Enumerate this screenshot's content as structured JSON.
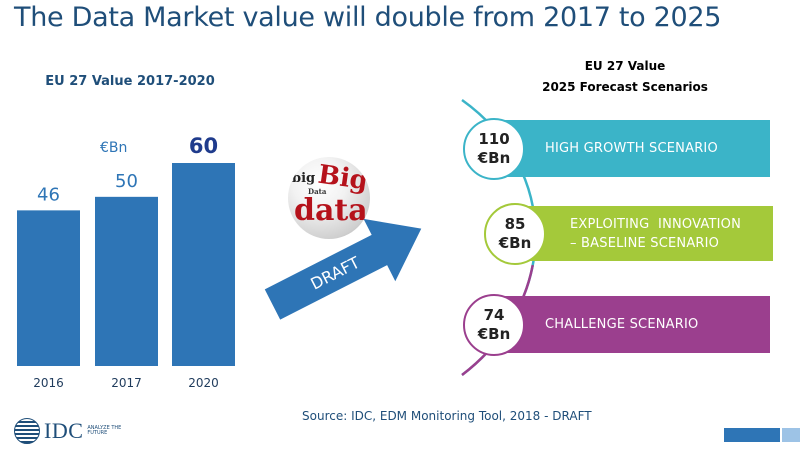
{
  "title": "The Data Market value will double from 2017 to 2025",
  "left_chart": {
    "heading": "EU 27 Value 2017-2020",
    "unit": "€Bn"
  },
  "right_panel": {
    "heading_line1": "EU 27 Value",
    "heading_line2": "2025 Forecast Scenarios",
    "scenarios": [
      {
        "value_line1": "110",
        "value_line2": "€Bn",
        "label_line1": "HIGH GROWTH SCENARIO",
        "label_line2": "",
        "color": "#3bb4c8"
      },
      {
        "value_line1": "85",
        "value_line2": "€Bn",
        "label_line1": "EXPLOITING  INNOVATION",
        "label_line2": "– BASELINE SCENARIO",
        "color": "#a4c93a"
      },
      {
        "value_line1": "74",
        "value_line2": "€Bn",
        "label_line1": "CHALLENGE SCENARIO",
        "label_line2": "",
        "color": "#9b3f8e"
      }
    ]
  },
  "arrow_label": "DRAFT",
  "ball_words": [
    "big",
    "data",
    "Big",
    "Data"
  ],
  "source": "Source: IDC, EDM Monitoring Tool, 2018 - DRAFT",
  "logo": {
    "text": "IDC",
    "tagline": "ANALYZE THE FUTURE"
  },
  "chart_data": {
    "type": "bar",
    "title": "EU 27 Value 2017-2020",
    "categories": [
      "2016",
      "2017",
      "2020"
    ],
    "values": [
      46,
      50,
      60
    ],
    "ylabel": "€Bn",
    "ylim": [
      0,
      60
    ],
    "bar_color": "#2e75b6",
    "highlight_color": "#1f3b8c",
    "grid": false,
    "legend": "none"
  }
}
